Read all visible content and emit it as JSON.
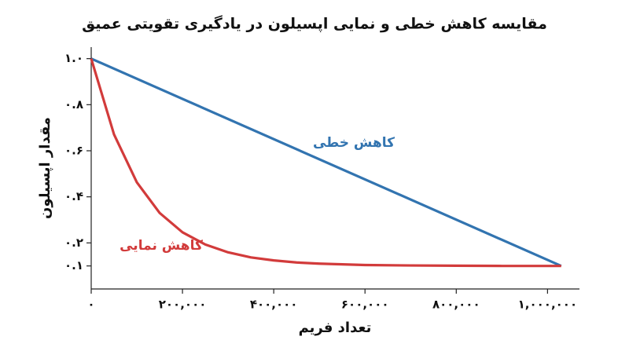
{
  "chart_data": {
    "type": "line",
    "title": "مقایسه کاهش خطی و نمایی اپسیلون در یادگیری تقویتی عمیق",
    "x_label": "تعداد فریم",
    "y_label": "مقدار اپسیلون",
    "xlim": [
      0,
      1070000
    ],
    "ylim": [
      0,
      1.05
    ],
    "xticks": [
      {
        "value": 0,
        "label": "۰"
      },
      {
        "value": 200000,
        "label": "۲۰۰,۰۰۰"
      },
      {
        "value": 400000,
        "label": "۴۰۰,۰۰۰"
      },
      {
        "value": 600000,
        "label": "۶۰۰,۰۰۰"
      },
      {
        "value": 800000,
        "label": "۸۰۰,۰۰۰"
      },
      {
        "value": 1000000,
        "label": "۱,۰۰۰,۰۰۰"
      }
    ],
    "yticks": [
      {
        "value": 1.0,
        "label": "۱.۰"
      },
      {
        "value": 0.8,
        "label": "۰.۸"
      },
      {
        "value": 0.6,
        "label": "۰.۶"
      },
      {
        "value": 0.4,
        "label": "۰.۴"
      },
      {
        "value": 0.2,
        "label": "۰.۲"
      },
      {
        "value": 0.1,
        "label": "۰.۱"
      }
    ],
    "grid": false,
    "series": [
      {
        "name": "کاهش خطی",
        "color": "#3274b0",
        "x": [
          0,
          1030000
        ],
        "values": [
          1.0,
          0.1
        ]
      },
      {
        "name": "کاهش نمایی",
        "color": "#d23b3b",
        "x": [
          0,
          50000,
          100000,
          150000,
          200000,
          250000,
          300000,
          350000,
          400000,
          450000,
          500000,
          600000,
          700000,
          800000,
          900000,
          1030000
        ],
        "values": [
          1.0,
          0.671,
          0.463,
          0.33,
          0.246,
          0.193,
          0.159,
          0.137,
          0.124,
          0.115,
          0.11,
          0.104,
          0.102,
          0.101,
          0.1,
          0.1
        ]
      }
    ]
  }
}
